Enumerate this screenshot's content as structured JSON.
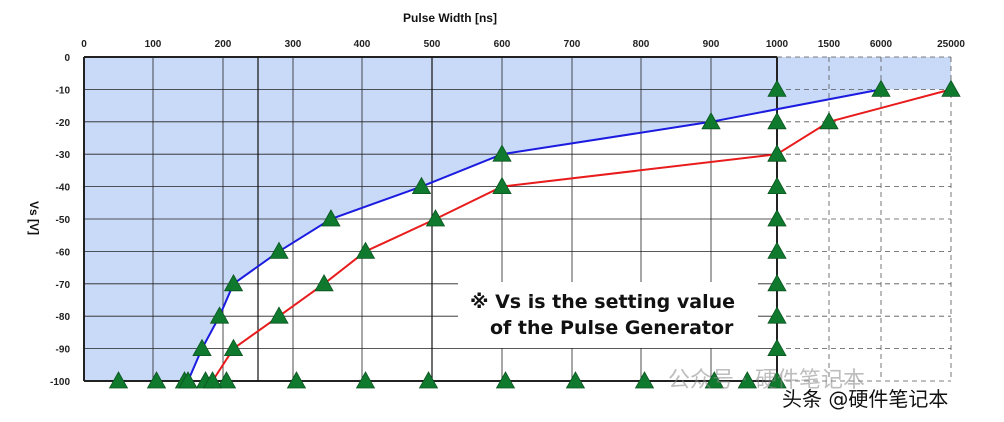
{
  "chart_data": {
    "type": "line",
    "title": "Pulse Width [ns]",
    "ylabel": "Vs [V]",
    "xlabel": "",
    "x_scale": "piecewise: linear 0-1000 ns, then 1000, 1500, 6000, 25000 equally spaced",
    "x_ticks": [
      "0",
      "100",
      "200",
      "300",
      "400",
      "500",
      "600",
      "700",
      "800",
      "900",
      "1000",
      "1500",
      "6000",
      "25000"
    ],
    "x_tick_values": [
      0,
      100,
      200,
      300,
      400,
      500,
      600,
      700,
      800,
      900,
      1000,
      1500,
      6000,
      25000
    ],
    "y_ticks": [
      "0",
      "-10",
      "-20",
      "-30",
      "-40",
      "-50",
      "-60",
      "-70",
      "-80",
      "-90",
      "-100"
    ],
    "y_tick_values": [
      0,
      -10,
      -20,
      -30,
      -40,
      -50,
      -60,
      -70,
      -80,
      -90,
      -100
    ],
    "ylim": [
      -100,
      0
    ],
    "grid": true,
    "shaded_region": {
      "color": "#c9daf8",
      "bounded_by": "Blue Curve"
    },
    "series": [
      {
        "name": "Blue Curve",
        "color": "#1c1ce0",
        "x": [
          150,
          170,
          195,
          215,
          280,
          355,
          485,
          600,
          900,
          6000
        ],
        "y": [
          -100,
          -90,
          -80,
          -70,
          -60,
          -50,
          -40,
          -30,
          -20,
          -10
        ]
      },
      {
        "name": "Red Curve",
        "color": "#e81c1c",
        "x": [
          185,
          215,
          280,
          345,
          405,
          505,
          600,
          1000,
          1500,
          25000
        ],
        "y": [
          -100,
          -90,
          -80,
          -70,
          -60,
          -50,
          -40,
          -30,
          -20,
          -10
        ]
      }
    ],
    "markers": {
      "color": "#0f7a2e",
      "shape": "triangle",
      "points": [
        {
          "x": 50,
          "y": -100
        },
        {
          "x": 105,
          "y": -100
        },
        {
          "x": 145,
          "y": -100
        },
        {
          "x": 175,
          "y": -100
        },
        {
          "x": 205,
          "y": -100
        },
        {
          "x": 305,
          "y": -100
        },
        {
          "x": 405,
          "y": -100
        },
        {
          "x": 495,
          "y": -100
        },
        {
          "x": 605,
          "y": -100
        },
        {
          "x": 705,
          "y": -100
        },
        {
          "x": 805,
          "y": -100
        },
        {
          "x": 905,
          "y": -100
        },
        {
          "x": 955,
          "y": -100
        },
        {
          "x": 1000,
          "y": -10
        },
        {
          "x": 1000,
          "y": -20
        },
        {
          "x": 1000,
          "y": -30
        },
        {
          "x": 1000,
          "y": -40
        },
        {
          "x": 1000,
          "y": -50
        },
        {
          "x": 1000,
          "y": -60
        },
        {
          "x": 1000,
          "y": -70
        },
        {
          "x": 1000,
          "y": -80
        },
        {
          "x": 1000,
          "y": -90
        },
        {
          "x": 1000,
          "y": -100
        },
        {
          "x": 150,
          "y": -100
        },
        {
          "x": 170,
          "y": -90
        },
        {
          "x": 195,
          "y": -80
        },
        {
          "x": 215,
          "y": -70
        },
        {
          "x": 280,
          "y": -60
        },
        {
          "x": 355,
          "y": -50
        },
        {
          "x": 485,
          "y": -40
        },
        {
          "x": 600,
          "y": -30
        },
        {
          "x": 900,
          "y": -20
        },
        {
          "x": 6000,
          "y": -10
        },
        {
          "x": 185,
          "y": -100
        },
        {
          "x": 215,
          "y": -90
        },
        {
          "x": 280,
          "y": -80
        },
        {
          "x": 345,
          "y": -70
        },
        {
          "x": 405,
          "y": -60
        },
        {
          "x": 505,
          "y": -50
        },
        {
          "x": 600,
          "y": -40
        },
        {
          "x": 1000,
          "y": -30
        },
        {
          "x": 1500,
          "y": -20
        },
        {
          "x": 25000,
          "y": -10
        }
      ]
    },
    "annotation": {
      "line1": "※ Vs is the setting value",
      "line2": "of the Pulse Generator"
    }
  },
  "watermark": "公众号 · 硬件笔记本",
  "credit": "头条 @硬件笔记本"
}
